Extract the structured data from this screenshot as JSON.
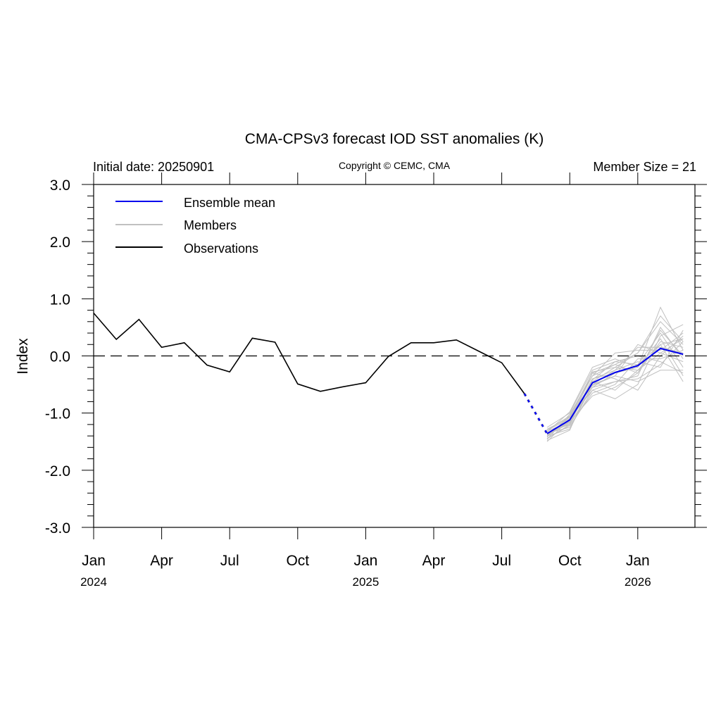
{
  "chart_data": {
    "type": "line",
    "title": "CMA-CPSv3 forecast IOD SST anomalies (K)",
    "subtitle_left": "Initial date: 20250901",
    "subtitle_center": "Copyright © CEMC, CMA",
    "subtitle_right": "Member Size = 21",
    "xlabel": "",
    "ylabel": "Index",
    "ylim": [
      -3.0,
      3.0
    ],
    "yticks": [
      3.0,
      2.0,
      1.0,
      0.0,
      -1.0,
      -2.0,
      -3.0
    ],
    "ytick_labels": [
      "3.0",
      "2.0",
      "1.0",
      "0.0",
      "-1.0",
      "-2.0",
      "-3.0"
    ],
    "y_minor_step": 0.2,
    "x_months": [
      "2024-01",
      "2024-02",
      "2024-03",
      "2024-04",
      "2024-05",
      "2024-06",
      "2024-07",
      "2024-08",
      "2024-09",
      "2024-10",
      "2024-11",
      "2024-12",
      "2025-01",
      "2025-02",
      "2025-03",
      "2025-04",
      "2025-05",
      "2025-06",
      "2025-07",
      "2025-08",
      "2025-09",
      "2025-10",
      "2025-11",
      "2025-12",
      "2026-01",
      "2026-02",
      "2026-03"
    ],
    "xticks": [
      {
        "index": 0,
        "label": "Jan",
        "year": "2024"
      },
      {
        "index": 3,
        "label": "Apr",
        "year": ""
      },
      {
        "index": 6,
        "label": "Jul",
        "year": ""
      },
      {
        "index": 9,
        "label": "Oct",
        "year": ""
      },
      {
        "index": 12,
        "label": "Jan",
        "year": "2025"
      },
      {
        "index": 15,
        "label": "Apr",
        "year": ""
      },
      {
        "index": 18,
        "label": "Jul",
        "year": ""
      },
      {
        "index": 21,
        "label": "Oct",
        "year": ""
      },
      {
        "index": 24,
        "label": "Jan",
        "year": "2026"
      }
    ],
    "zero_line": {
      "value": 0.0,
      "style": "dashed"
    },
    "legend": {
      "position": "top-left",
      "entries": [
        {
          "label": "Ensemble mean",
          "color": "#0000ee"
        },
        {
          "label": "Members",
          "color": "#c0c0c0"
        },
        {
          "label": "Observations",
          "color": "#000000"
        }
      ]
    },
    "series": [
      {
        "name": "Observations",
        "color": "#000000",
        "start_index": 0,
        "values": [
          0.75,
          0.29,
          0.64,
          0.15,
          0.23,
          -0.16,
          -0.28,
          0.31,
          0.24,
          -0.49,
          -0.62,
          -0.54,
          -0.47,
          -0.01,
          0.23,
          0.23,
          0.28,
          0.08,
          -0.12,
          -0.66
        ]
      },
      {
        "name": "Ensemble mean",
        "color": "#0000ee",
        "start_index": 20,
        "values": [
          -1.36,
          -1.12,
          -0.47,
          -0.29,
          -0.17,
          0.13,
          0.03
        ]
      },
      {
        "name": "Members",
        "color": "#c0c0c0",
        "start_index": 20,
        "members": [
          [
            -1.4,
            -1.15,
            -0.4,
            -0.3,
            -0.2,
            0.85,
            0.1
          ],
          [
            -1.3,
            -1.05,
            -0.3,
            -0.15,
            0.05,
            0.7,
            0.25
          ],
          [
            -1.45,
            -1.2,
            -0.55,
            -0.45,
            -0.35,
            0.5,
            -0.05
          ],
          [
            -1.35,
            -1.25,
            -0.6,
            -0.75,
            -0.5,
            0.35,
            0.55
          ],
          [
            -1.5,
            -1.1,
            -0.35,
            0.05,
            0.1,
            0.1,
            0.4
          ],
          [
            -1.25,
            -1.0,
            -0.25,
            -0.1,
            0.0,
            -0.1,
            -0.3
          ],
          [
            -1.38,
            -1.18,
            -0.45,
            -0.2,
            -0.25,
            0.2,
            -0.45
          ],
          [
            -1.42,
            -1.05,
            -0.5,
            -0.35,
            0.2,
            0.05,
            0.3
          ],
          [
            -1.32,
            -1.15,
            -0.7,
            -0.55,
            -0.3,
            0.25,
            0.15
          ],
          [
            -1.48,
            -1.3,
            -0.4,
            -0.25,
            -0.1,
            -0.2,
            0.45
          ],
          [
            -1.28,
            -1.08,
            -0.3,
            -0.4,
            -0.6,
            0.0,
            0.35
          ],
          [
            -1.36,
            -1.12,
            -0.55,
            -0.3,
            -0.15,
            0.4,
            -0.2
          ],
          [
            -1.44,
            -1.22,
            -0.65,
            -0.5,
            -0.05,
            -0.05,
            0.1
          ],
          [
            -1.33,
            -0.98,
            -0.2,
            -0.05,
            -0.2,
            0.3,
            -0.35
          ],
          [
            -1.4,
            -1.28,
            -0.5,
            -0.25,
            0.15,
            0.15,
            0.05
          ],
          [
            -1.3,
            -1.1,
            -0.6,
            -0.45,
            -0.4,
            -0.15,
            0.25
          ],
          [
            -1.46,
            -1.02,
            -0.35,
            -0.15,
            -0.3,
            0.45,
            0.0
          ],
          [
            -1.38,
            -1.16,
            -0.45,
            -0.6,
            -0.25,
            0.05,
            -0.1
          ],
          [
            -1.34,
            -1.2,
            -0.28,
            -0.2,
            0.05,
            0.6,
            0.2
          ],
          [
            -1.41,
            -1.06,
            -0.52,
            -0.35,
            -0.45,
            -0.25,
            -0.25
          ],
          [
            -1.37,
            -1.14,
            -0.42,
            -0.1,
            -0.15,
            0.2,
            0.3
          ]
        ]
      }
    ],
    "connector": {
      "from": "Observations",
      "to": "Ensemble mean",
      "style": "dotted",
      "color": "#0000ee"
    }
  }
}
